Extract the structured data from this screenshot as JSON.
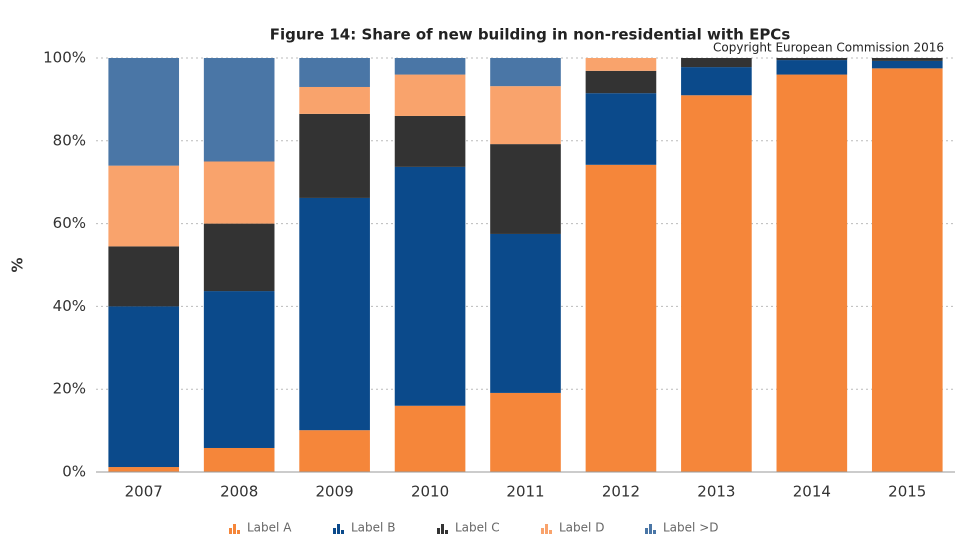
{
  "chart_data": {
    "type": "stacked_bar",
    "title": "Figure 14: Share of new building in non-residential with EPCs",
    "annotation": "Copyright European Commission 2016",
    "y_label": "%",
    "categories": [
      "2007",
      "2008",
      "2009",
      "2010",
      "2011",
      "2012",
      "2013",
      "2014",
      "2015"
    ],
    "series": [
      {
        "name": "Label A",
        "color": "#f5863a",
        "values": [
          1.2,
          5.8,
          10.1,
          16,
          19.1,
          74.2,
          91,
          96,
          97.5
        ]
      },
      {
        "name": "Label B",
        "color": "#0b4a8b",
        "values": [
          38.8,
          37.9,
          56.1,
          57.7,
          38.4,
          17.3,
          6.8,
          3.5,
          1.8
        ]
      },
      {
        "name": "Label C",
        "color": "#333333",
        "values": [
          14.5,
          16.3,
          20.3,
          12.3,
          21.7,
          5.4,
          2.2,
          0.5,
          0.7
        ]
      },
      {
        "name": "Label D",
        "color": "#f9a36c",
        "values": [
          19.5,
          15,
          6.5,
          10,
          14,
          3.1,
          0,
          0,
          0
        ]
      },
      {
        "name": "Label >D",
        "color": "#4a76a6",
        "values": [
          26,
          25,
          7,
          4,
          6.8,
          0,
          0,
          0,
          0
        ]
      }
    ],
    "ylim": [
      0,
      100
    ],
    "yticks": [
      {
        "value": 0,
        "label": "0%"
      },
      {
        "value": 20,
        "label": "20%"
      },
      {
        "value": 40,
        "label": "40%"
      },
      {
        "value": 60,
        "label": "60%"
      },
      {
        "value": 80,
        "label": "80%"
      },
      {
        "value": 100,
        "label": "100%"
      }
    ],
    "grid": true,
    "legend": "bottom"
  }
}
